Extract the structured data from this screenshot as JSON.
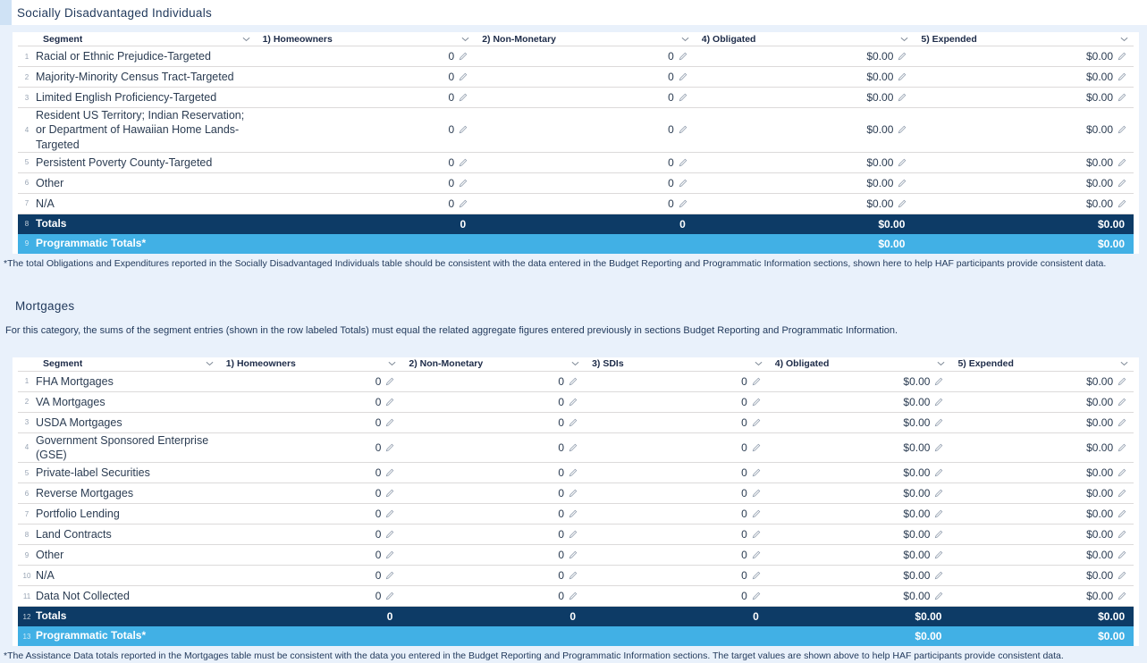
{
  "page": {
    "background_color": "#e9f1fb",
    "totals_row_color": "#0d3b66",
    "programmatic_row_color": "#41b0e5"
  },
  "sections": [
    {
      "title": "Socially Disadvantaged Individuals",
      "intro": "",
      "footnote": "*The total Obligations and Expenditures reported in the Socially Disadvantaged Individuals table should be consistent with the data entered in the Budget Reporting and Programmatic Information sections, shown here to help HAF participants provide consistent data.",
      "columns": [
        "Segment",
        "1) Homeowners",
        "2) Non-Monetary",
        "4) Obligated",
        "5) Expended"
      ],
      "rows": [
        {
          "num": "1",
          "segment": "Racial or Ethnic Prejudice-Targeted",
          "type": "data",
          "values": [
            "0",
            "0",
            "$0.00",
            "$0.00"
          ]
        },
        {
          "num": "2",
          "segment": "Majority-Minority Census Tract-Targeted",
          "type": "data",
          "values": [
            "0",
            "0",
            "$0.00",
            "$0.00"
          ]
        },
        {
          "num": "3",
          "segment": "Limited English Proficiency-Targeted",
          "type": "data",
          "values": [
            "0",
            "0",
            "$0.00",
            "$0.00"
          ]
        },
        {
          "num": "4",
          "segment": "Resident US Territory; Indian Reservation; or Department of Hawaiian Home Lands-Targeted",
          "type": "data",
          "values": [
            "0",
            "0",
            "$0.00",
            "$0.00"
          ]
        },
        {
          "num": "5",
          "segment": "Persistent Poverty County-Targeted",
          "type": "data",
          "values": [
            "0",
            "0",
            "$0.00",
            "$0.00"
          ]
        },
        {
          "num": "6",
          "segment": "Other",
          "type": "data",
          "values": [
            "0",
            "0",
            "$0.00",
            "$0.00"
          ]
        },
        {
          "num": "7",
          "segment": "N/A",
          "type": "data",
          "values": [
            "0",
            "0",
            "$0.00",
            "$0.00"
          ]
        },
        {
          "num": "8",
          "segment": "Totals",
          "type": "totals",
          "values": [
            "0",
            "0",
            "$0.00",
            "$0.00"
          ]
        },
        {
          "num": "9",
          "segment": "Programmatic Totals*",
          "type": "programmatic",
          "values": [
            "",
            "",
            "$0.00",
            "$0.00"
          ]
        }
      ]
    },
    {
      "title": "Mortgages",
      "intro": "For this category, the sums of the segment entries (shown in the row labeled Totals) must equal the related aggregate figures entered previously in sections Budget Reporting and Programmatic Information.",
      "footnote": "*The Assistance Data totals reported in the Mortgages table must be consistent with the data you entered in the Budget Reporting and Programmatic Information sections. The target values are shown above to help HAF participants provide consistent data.",
      "columns": [
        "Segment",
        "1) Homeowners",
        "2) Non-Monetary",
        "3) SDIs",
        "4) Obligated",
        "5) Expended"
      ],
      "rows": [
        {
          "num": "1",
          "segment": "FHA Mortgages",
          "type": "data",
          "values": [
            "0",
            "0",
            "0",
            "$0.00",
            "$0.00"
          ]
        },
        {
          "num": "2",
          "segment": "VA Mortgages",
          "type": "data",
          "values": [
            "0",
            "0",
            "0",
            "$0.00",
            "$0.00"
          ]
        },
        {
          "num": "3",
          "segment": "USDA Mortgages",
          "type": "data",
          "values": [
            "0",
            "0",
            "0",
            "$0.00",
            "$0.00"
          ]
        },
        {
          "num": "4",
          "segment": "Government Sponsored Enterprise (GSE)",
          "type": "data",
          "values": [
            "0",
            "0",
            "0",
            "$0.00",
            "$0.00"
          ]
        },
        {
          "num": "5",
          "segment": "Private-label Securities",
          "type": "data",
          "values": [
            "0",
            "0",
            "0",
            "$0.00",
            "$0.00"
          ]
        },
        {
          "num": "6",
          "segment": "Reverse Mortgages",
          "type": "data",
          "values": [
            "0",
            "0",
            "0",
            "$0.00",
            "$0.00"
          ]
        },
        {
          "num": "7",
          "segment": "Portfolio Lending",
          "type": "data",
          "values": [
            "0",
            "0",
            "0",
            "$0.00",
            "$0.00"
          ]
        },
        {
          "num": "8",
          "segment": "Land Contracts",
          "type": "data",
          "values": [
            "0",
            "0",
            "0",
            "$0.00",
            "$0.00"
          ]
        },
        {
          "num": "9",
          "segment": "Other",
          "type": "data",
          "values": [
            "0",
            "0",
            "0",
            "$0.00",
            "$0.00"
          ]
        },
        {
          "num": "10",
          "segment": "N/A",
          "type": "data",
          "values": [
            "0",
            "0",
            "0",
            "$0.00",
            "$0.00"
          ]
        },
        {
          "num": "11",
          "segment": "Data Not Collected",
          "type": "data",
          "values": [
            "0",
            "0",
            "0",
            "$0.00",
            "$0.00"
          ]
        },
        {
          "num": "12",
          "segment": "Totals",
          "type": "totals",
          "values": [
            "0",
            "0",
            "0",
            "$0.00",
            "$0.00"
          ]
        },
        {
          "num": "13",
          "segment": "Programmatic Totals*",
          "type": "programmatic",
          "values": [
            "",
            "",
            "",
            "$0.00",
            "$0.00"
          ]
        }
      ]
    }
  ],
  "icons": {
    "sort_chevron": "chevron-down",
    "edit": "pencil"
  }
}
